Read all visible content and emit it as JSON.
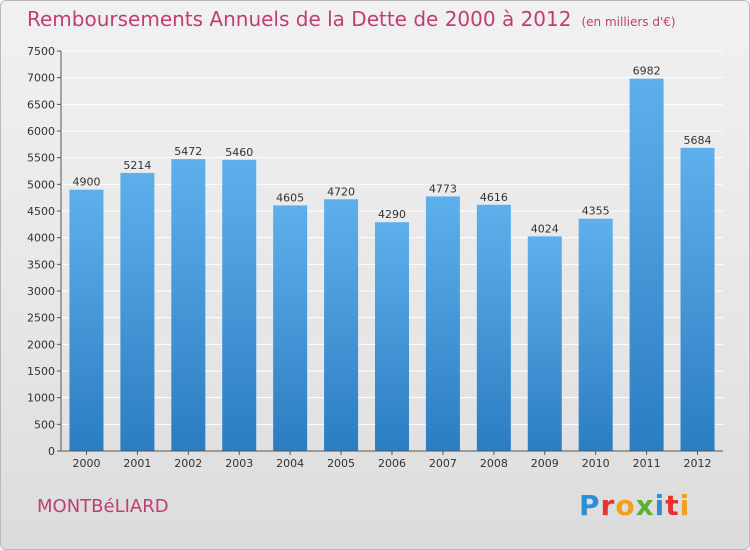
{
  "title": "Remboursements Annuels de la Dette de 2000 à 2012",
  "unit_note": "(en milliers d'€)",
  "city": "MONTBéLIARD",
  "brand": {
    "letters": [
      "P",
      "r",
      "o",
      "x",
      "i",
      "t",
      "i"
    ],
    "colors": [
      "#2e8fd6",
      "#e8322f",
      "#f0a11c",
      "#5bb236",
      "#2e8fd6",
      "#e8322f",
      "#f0a11c"
    ]
  },
  "colors": {
    "bar_top": "#5eb0ec",
    "bar_bottom": "#2b7dc2",
    "title": "#c03d75",
    "grid": "#ffffff"
  },
  "chart_data": {
    "type": "bar",
    "categories": [
      "2000",
      "2001",
      "2002",
      "2003",
      "2004",
      "2005",
      "2006",
      "2007",
      "2008",
      "2009",
      "2010",
      "2011",
      "2012"
    ],
    "values": [
      4900,
      5214,
      5472,
      5460,
      4605,
      4720,
      4290,
      4773,
      4616,
      4024,
      4355,
      6982,
      5684
    ],
    "yticks": [
      "0",
      "500",
      "1000",
      "1500",
      "2000",
      "2500",
      "3000",
      "3500",
      "4000",
      "4500",
      "5000",
      "5500",
      "6000",
      "6500",
      "7000",
      "7500"
    ],
    "ylim": [
      0,
      7500
    ],
    "grid": true,
    "title": "Remboursements Annuels de la Dette de 2000 à 2012",
    "xlabel": "",
    "ylabel": ""
  }
}
